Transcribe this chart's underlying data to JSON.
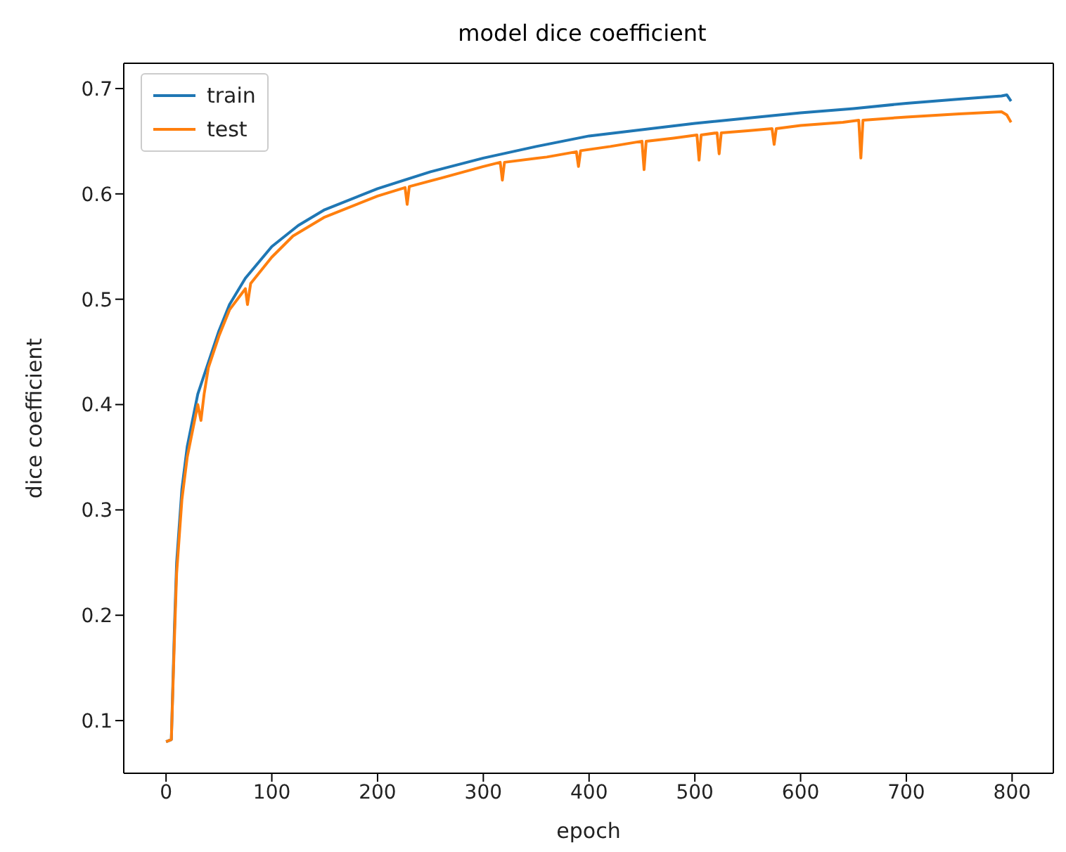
{
  "chart_data": {
    "type": "line",
    "title": "model dice coefficient",
    "xlabel": "epoch",
    "ylabel": "dice coefficient",
    "xlim": [
      -40,
      839
    ],
    "xticks": [
      0,
      100,
      200,
      300,
      400,
      500,
      600,
      700,
      800
    ],
    "ylim": [
      0.05,
      0.724
    ],
    "yticks": [
      0.1,
      0.2,
      0.3,
      0.4,
      0.5,
      0.6,
      0.7
    ],
    "legend": "top left",
    "series": [
      {
        "name": "train",
        "color": "#1f77b4",
        "x": [
          0,
          5,
          8,
          10,
          15,
          20,
          30,
          40,
          50,
          60,
          75,
          100,
          125,
          150,
          200,
          250,
          300,
          350,
          400,
          450,
          500,
          550,
          600,
          650,
          700,
          750,
          790,
          795,
          799
        ],
        "values": [
          0.08,
          0.082,
          0.19,
          0.25,
          0.32,
          0.36,
          0.41,
          0.44,
          0.47,
          0.495,
          0.52,
          0.55,
          0.57,
          0.585,
          0.605,
          0.621,
          0.634,
          0.645,
          0.655,
          0.661,
          0.667,
          0.672,
          0.677,
          0.681,
          0.686,
          0.69,
          0.693,
          0.694,
          0.688
        ]
      },
      {
        "name": "test",
        "color": "#ff7f0e",
        "x": [
          0,
          5,
          8,
          10,
          15,
          20,
          30,
          33,
          36,
          40,
          50,
          60,
          75,
          77,
          80,
          100,
          120,
          150,
          200,
          226,
          228,
          230,
          260,
          300,
          316,
          318,
          320,
          360,
          388,
          390,
          392,
          420,
          450,
          452,
          454,
          480,
          502,
          504,
          506,
          521,
          523,
          525,
          550,
          573,
          575,
          577,
          600,
          640,
          655,
          657,
          659,
          700,
          750,
          790,
          795,
          799
        ],
        "values": [
          0.08,
          0.082,
          0.18,
          0.24,
          0.31,
          0.35,
          0.4,
          0.385,
          0.41,
          0.435,
          0.465,
          0.49,
          0.51,
          0.495,
          0.515,
          0.54,
          0.56,
          0.578,
          0.598,
          0.606,
          0.59,
          0.607,
          0.615,
          0.626,
          0.63,
          0.613,
          0.63,
          0.635,
          0.64,
          0.626,
          0.641,
          0.645,
          0.65,
          0.623,
          0.65,
          0.653,
          0.656,
          0.632,
          0.656,
          0.658,
          0.638,
          0.658,
          0.66,
          0.662,
          0.647,
          0.662,
          0.665,
          0.668,
          0.67,
          0.634,
          0.67,
          0.673,
          0.676,
          0.678,
          0.675,
          0.668
        ]
      }
    ]
  }
}
